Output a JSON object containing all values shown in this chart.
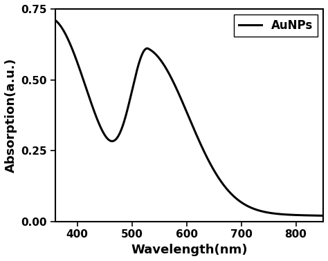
{
  "xlabel": "Wavelength(nm)",
  "ylabel": "Absorption(a.u.)",
  "xlim": [
    360,
    850
  ],
  "ylim": [
    0.0,
    0.75
  ],
  "xticks": [
    400,
    500,
    600,
    700,
    800
  ],
  "yticks": [
    0.0,
    0.25,
    0.5,
    0.75
  ],
  "legend_label": "AuNPs",
  "line_color": "#000000",
  "line_width": 2.2,
  "background_color": "#ffffff",
  "xlabel_fontsize": 13,
  "ylabel_fontsize": 13,
  "tick_fontsize": 11,
  "legend_fontsize": 12
}
